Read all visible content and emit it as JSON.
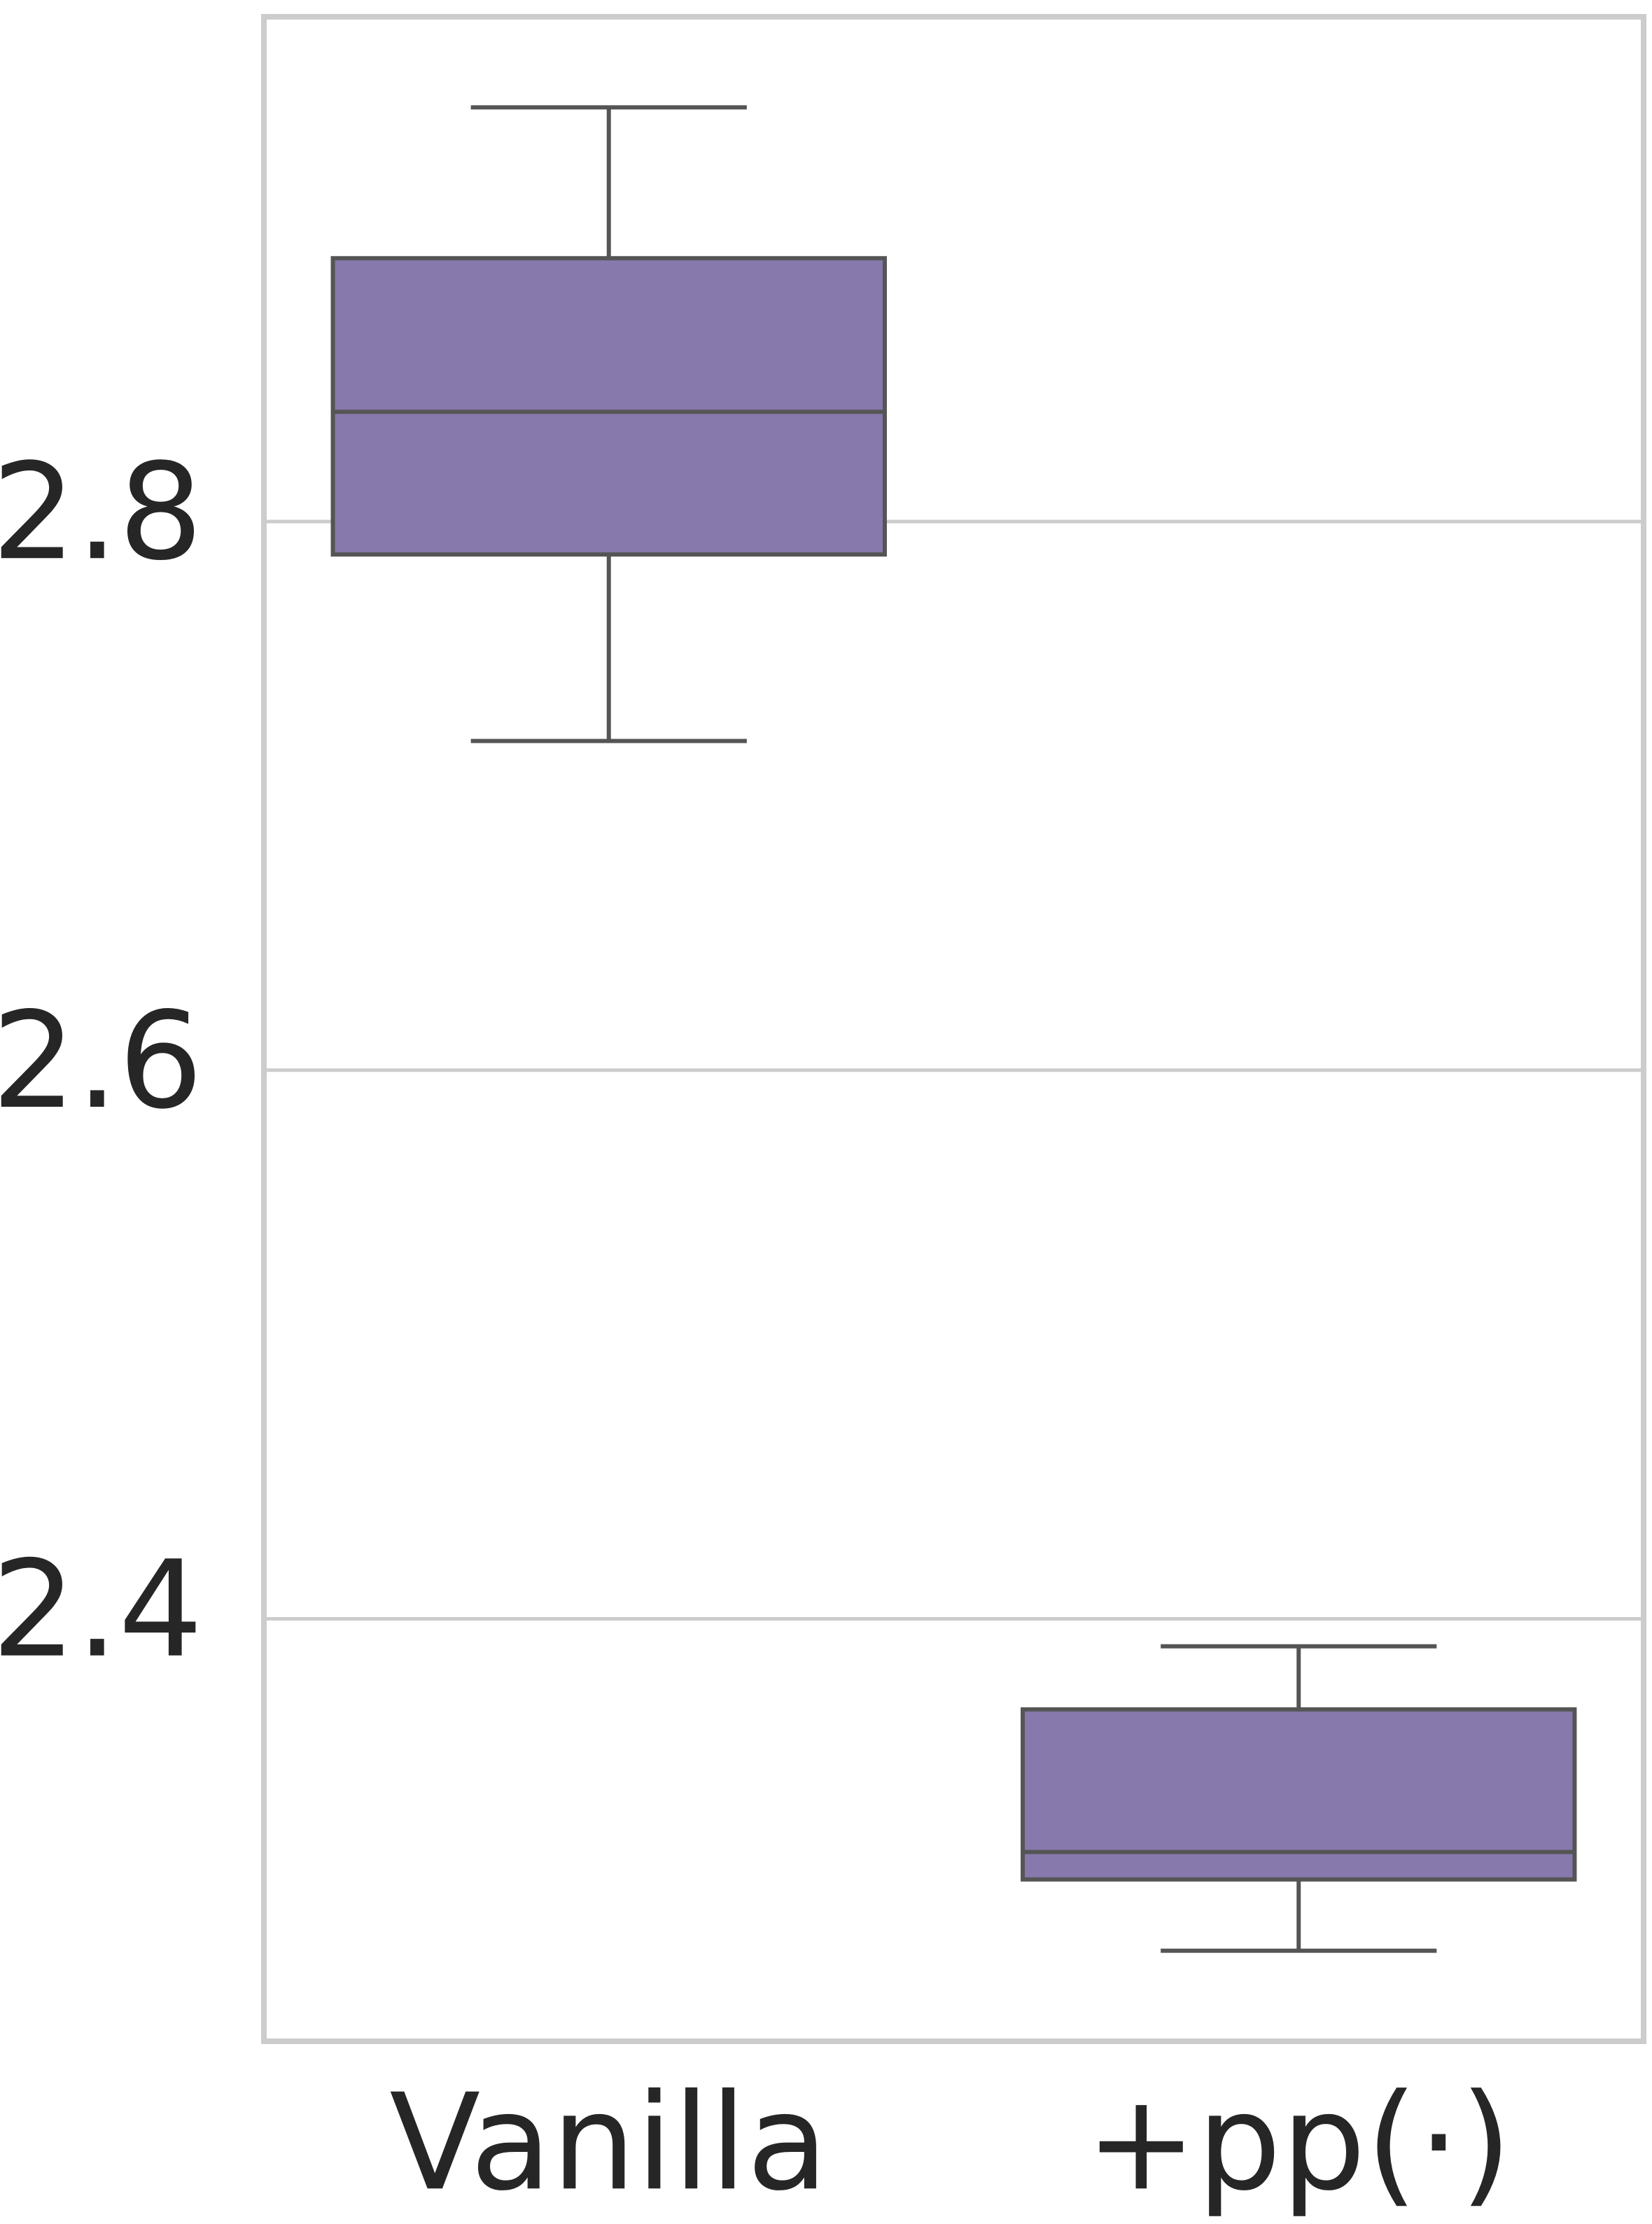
{
  "chart_data": {
    "type": "box",
    "categories": [
      "Vanilla",
      "+pp(·)"
    ],
    "boxes": [
      {
        "whislo": 2.72,
        "q1": 2.788,
        "med": 2.84,
        "q3": 2.896,
        "whishi": 2.951
      },
      {
        "whislo": 2.279,
        "q1": 2.305,
        "med": 2.315,
        "q3": 2.367,
        "whishi": 2.39
      }
    ],
    "color": "#8779ac",
    "edge_color": "#555555",
    "ylim": [
      2.246,
      2.984
    ],
    "yticks": [
      2.4,
      2.6,
      2.8
    ],
    "grid": true
  }
}
